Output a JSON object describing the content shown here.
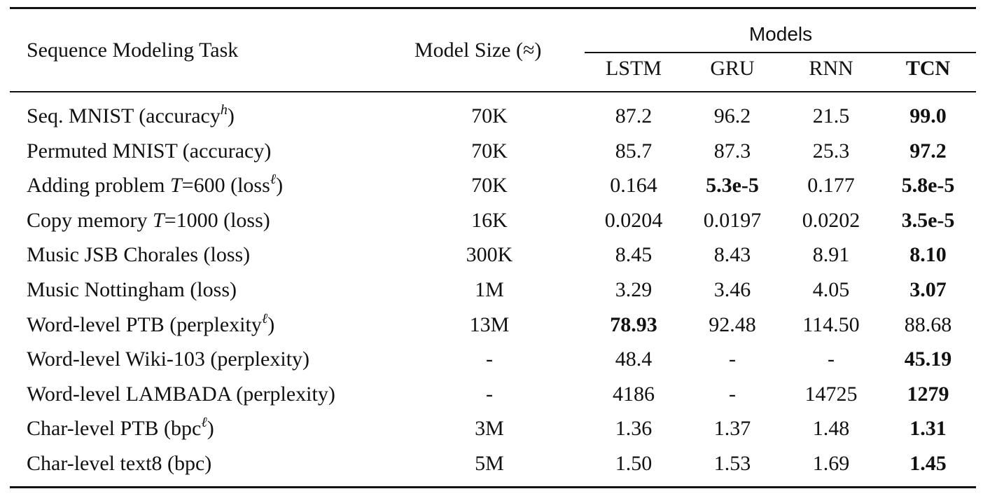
{
  "header": {
    "task": "Sequence Modeling Task",
    "size": "Model Size (≈)",
    "group": "Models",
    "columns": [
      "LSTM",
      "GRU",
      "RNN",
      "TCN"
    ]
  },
  "rows": [
    {
      "pre": "Seq. MNIST (accuracy",
      "sup": "h",
      "post": ")",
      "size": "70K",
      "values": [
        "87.2",
        "96.2",
        "21.5",
        "99.0"
      ],
      "bold": [
        false,
        false,
        false,
        true
      ]
    },
    {
      "pre": "Permuted MNIST (accuracy)",
      "sup": "",
      "post": "",
      "size": "70K",
      "values": [
        "85.7",
        "87.3",
        "25.3",
        "97.2"
      ],
      "bold": [
        false,
        false,
        false,
        true
      ]
    },
    {
      "pre": "Adding problem ",
      "var": "T",
      "mid": "=600 (loss",
      "sup": "ℓ",
      "post": ")",
      "size": "70K",
      "values": [
        "0.164",
        "5.3e-5",
        "0.177",
        "5.8e-5"
      ],
      "bold": [
        false,
        true,
        false,
        true
      ]
    },
    {
      "pre": "Copy memory ",
      "var": "T",
      "mid": "=1000 (loss)",
      "sup": "",
      "post": "",
      "size": "16K",
      "values": [
        "0.0204",
        "0.0197",
        "0.0202",
        "3.5e-5"
      ],
      "bold": [
        false,
        false,
        false,
        true
      ]
    },
    {
      "pre": "Music JSB Chorales (loss)",
      "sup": "",
      "post": "",
      "size": "300K",
      "values": [
        "8.45",
        "8.43",
        "8.91",
        "8.10"
      ],
      "bold": [
        false,
        false,
        false,
        true
      ]
    },
    {
      "pre": "Music Nottingham (loss)",
      "sup": "",
      "post": "",
      "size": "1M",
      "values": [
        "3.29",
        "3.46",
        "4.05",
        "3.07"
      ],
      "bold": [
        false,
        false,
        false,
        true
      ]
    },
    {
      "pre": "Word-level PTB (perplexity",
      "sup": "ℓ",
      "post": ")",
      "size": "13M",
      "values": [
        "78.93",
        "92.48",
        "114.50",
        "88.68"
      ],
      "bold": [
        true,
        false,
        false,
        false
      ]
    },
    {
      "pre": "Word-level Wiki-103 (perplexity)",
      "sup": "",
      "post": "",
      "size": "-",
      "values": [
        "48.4",
        "-",
        "-",
        "45.19"
      ],
      "bold": [
        false,
        false,
        false,
        true
      ]
    },
    {
      "pre": "Word-level LAMBADA (perplexity)",
      "sup": "",
      "post": "",
      "size": "-",
      "values": [
        "4186",
        "-",
        "14725",
        "1279"
      ],
      "bold": [
        false,
        false,
        false,
        true
      ]
    },
    {
      "pre": "Char-level PTB (bpc",
      "sup": "ℓ",
      "post": ")",
      "size": "3M",
      "values": [
        "1.36",
        "1.37",
        "1.48",
        "1.31"
      ],
      "bold": [
        false,
        false,
        false,
        true
      ]
    },
    {
      "pre": "Char-level text8 (bpc)",
      "sup": "",
      "post": "",
      "size": "5M",
      "values": [
        "1.50",
        "1.53",
        "1.69",
        "1.45"
      ],
      "bold": [
        false,
        false,
        false,
        true
      ]
    }
  ]
}
